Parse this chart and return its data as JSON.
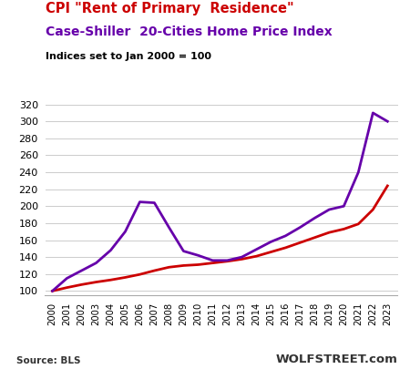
{
  "title1": "CPI \"Rent of Primary  Residence\"",
  "title2": "Case-Shiller  20-Cities Home Price Index",
  "subtitle": "Indices set to Jan 2000 = 100",
  "title1_color": "#cc0000",
  "title2_color": "#6600aa",
  "subtitle_color": "#000000",
  "source_text": "Source: BLS",
  "watermark": "WOLFSTREET.com",
  "ylim": [
    95,
    330
  ],
  "yticks": [
    100,
    120,
    140,
    160,
    180,
    200,
    220,
    240,
    260,
    280,
    300,
    320
  ],
  "years": [
    2000,
    2001,
    2002,
    2003,
    2004,
    2005,
    2006,
    2007,
    2008,
    2009,
    2010,
    2011,
    2012,
    2013,
    2014,
    2015,
    2016,
    2017,
    2018,
    2019,
    2020,
    2021,
    2022,
    2023
  ],
  "cpi_rent": [
    100,
    104,
    107.5,
    110.5,
    113,
    116,
    119.5,
    124,
    128,
    130,
    131,
    133,
    135,
    137.5,
    141,
    146,
    151,
    157,
    163,
    169,
    173,
    179,
    196,
    224
  ],
  "case_shiller": [
    100,
    115,
    124,
    133,
    148,
    170,
    205,
    204,
    175,
    147,
    142,
    136,
    136,
    140,
    149,
    158,
    165,
    175,
    186,
    196,
    200,
    240,
    310,
    300
  ],
  "cpi_color": "#cc0000",
  "cs_color": "#6600aa",
  "background_color": "#ffffff",
  "grid_color": "#cccccc"
}
